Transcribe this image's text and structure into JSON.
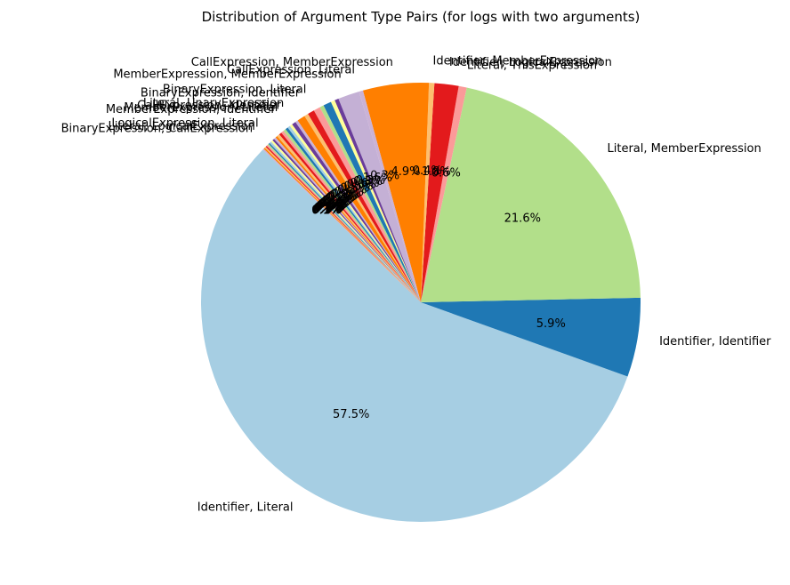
{
  "chart_data": {
    "type": "pie",
    "title": "Distribution of Argument Type Pairs (for logs with two arguments)",
    "start_angle_deg": 136,
    "slices": [
      {
        "label": "Identifier, Literal",
        "value": 57.5,
        "pct_label": "57.5%",
        "color": "#a6cee3"
      },
      {
        "label": "Identifier, Identifier",
        "value": 5.9,
        "pct_label": "5.9%",
        "color": "#1f78b4"
      },
      {
        "label": "Literal, MemberExpression",
        "value": 21.6,
        "pct_label": "21.6%",
        "color": "#b2df8a"
      },
      {
        "label": "Literal, ThisExpression",
        "value": 0.6,
        "pct_label": "0.6%",
        "color": "#fb9a99"
      },
      {
        "label": "Identifier, LogicalExpression",
        "value": 1.8,
        "pct_label": "1.8%",
        "color": "#e31a1c"
      },
      {
        "label": "Identifier, MemberExpression",
        "value": 0.4,
        "pct_label": "0.4%",
        "color": "#fdbf6f"
      },
      {
        "label": "CallExpression, MemberExpression",
        "value": 4.9,
        "pct_label": "4.9%",
        "color": "#ff7f00"
      },
      {
        "label": "CallExpression, Literal",
        "value": 0.3,
        "pct_label": "0.3%",
        "color": "#cab2d6"
      },
      {
        "label": "MemberExpression, MemberExpression",
        "value": 1.6,
        "pct_label": "1.6%",
        "color": "#c4b0d5"
      },
      {
        "label": "",
        "value": 0.3,
        "pct_label": "0.3%",
        "color": "#6a3d9a"
      },
      {
        "label": "",
        "value": 0.3,
        "pct_label": "0.3%",
        "color": "#ffff99"
      },
      {
        "label": "",
        "value": 0.6,
        "pct_label": "0.6%",
        "color": "#1f78b4"
      },
      {
        "label": "",
        "value": 0.3,
        "pct_label": "0.3%",
        "color": "#b2df8a"
      },
      {
        "label": "BinaryExpression, Literal",
        "value": 0.5,
        "pct_label": "0.5%",
        "color": "#fb9a99"
      },
      {
        "label": "BinaryExpression, Identifier",
        "value": 0.5,
        "pct_label": "0.5%",
        "color": "#e31a1c"
      },
      {
        "label": "",
        "value": 0.3,
        "pct_label": "0.3%",
        "color": "#fdbf6f"
      },
      {
        "label": "",
        "value": 0.6,
        "pct_label": "0.6%",
        "color": "#ff7f00"
      },
      {
        "label": "Literal, UnaryExpression",
        "value": 0.2,
        "pct_label": "0.2%",
        "color": "#cab2d6"
      },
      {
        "label": "CallExpression, Identifier",
        "value": 0.3,
        "pct_label": "0.3%",
        "color": "#6a3d9a"
      },
      {
        "label": "MemberExpression, Literal",
        "value": 0.2,
        "pct_label": "0.2%",
        "color": "#ffff99"
      },
      {
        "label": "MemberExpression, Identifier",
        "value": 0.2,
        "pct_label": "0.2%",
        "color": "#a6cee3"
      },
      {
        "label": "",
        "value": 0.2,
        "pct_label": "0.2%",
        "color": "#1f78b4"
      },
      {
        "label": "",
        "value": 0.2,
        "pct_label": "0.2%",
        "color": "#b2df8a"
      },
      {
        "label": "",
        "value": 0.2,
        "pct_label": "0.2%",
        "color": "#fb9a99"
      },
      {
        "label": "",
        "value": 0.2,
        "pct_label": "0.2%",
        "color": "#e31a1c"
      },
      {
        "label": "",
        "value": 0.2,
        "pct_label": "0.2%",
        "color": "#fdbf6f"
      },
      {
        "label": "",
        "value": 0.15,
        "pct_label": "0.1%",
        "color": "#ff7f00"
      },
      {
        "label": "",
        "value": 0.15,
        "pct_label": "0.1%",
        "color": "#cab2d6"
      },
      {
        "label": "LogicalExpression, Literal",
        "value": 0.15,
        "pct_label": "0.1%",
        "color": "#6a3d9a"
      },
      {
        "label": "",
        "value": 0.15,
        "pct_label": "0.1%",
        "color": "#ffff99"
      },
      {
        "label": "Literal, LogicalExpression",
        "value": 0.15,
        "pct_label": "0.1%",
        "color": "#a6cee3"
      },
      {
        "label": "",
        "value": 0.1,
        "pct_label": "0.1%",
        "color": "#1f78b4"
      },
      {
        "label": "BinaryExpression, CallExpression",
        "value": 0.1,
        "pct_label": "0.1%",
        "color": "#b2df8a"
      },
      {
        "label": "",
        "value": 0.1,
        "pct_label": "0.1%",
        "color": "#fb9a99"
      },
      {
        "label": "",
        "value": 0.1,
        "pct_label": "0.1%",
        "color": "#e31a1c"
      },
      {
        "label": "",
        "value": 0.1,
        "pct_label": "0.1%",
        "color": "#fdbf6f"
      },
      {
        "label": "",
        "value": 0.1,
        "pct_label": "0.1%",
        "color": "#ff7f00"
      },
      {
        "label": "",
        "value": 0.1,
        "pct_label": "0.1%",
        "color": "#cab2d6"
      }
    ]
  }
}
